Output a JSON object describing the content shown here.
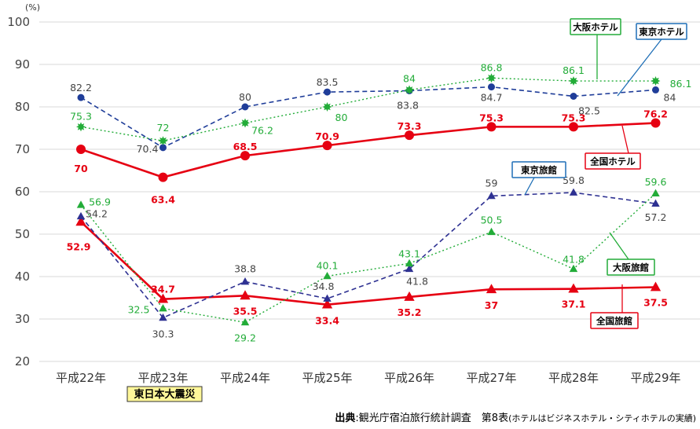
{
  "chart_data": {
    "type": "line",
    "ylabel": "(%)",
    "ylim": [
      20,
      100
    ],
    "yticks": [
      20,
      30,
      40,
      50,
      60,
      70,
      80,
      90,
      100
    ],
    "categories": [
      "平成22年",
      "平成23年",
      "平成24年",
      "平成25年",
      "平成26年",
      "平成27年",
      "平成28年",
      "平成29年"
    ],
    "grid": true,
    "series": [
      {
        "name": "全国ホテル",
        "color": "#e60012",
        "style": "solid",
        "marker": "circle",
        "values": [
          70,
          63.4,
          68.5,
          70.9,
          73.3,
          75.3,
          75.3,
          76.2
        ],
        "labels": [
          "70",
          "63.4",
          "68.5",
          "70.9",
          "73.3",
          "75.3",
          "75.3",
          "76.2"
        ]
      },
      {
        "name": "東京ホテル",
        "color": "#1f3d99",
        "style": "dashed",
        "marker": "circle",
        "values": [
          82.2,
          70.4,
          80,
          83.5,
          83.8,
          84.7,
          82.5,
          84
        ],
        "labels": [
          "82.2",
          "70.4",
          "80",
          "83.5",
          "83.8",
          "84.7",
          "82.5",
          "84"
        ]
      },
      {
        "name": "大阪ホテル",
        "color": "#22ac38",
        "style": "dotted",
        "marker": "star",
        "values": [
          75.3,
          72,
          76.2,
          80,
          84,
          86.8,
          86.1,
          86.1
        ],
        "labels": [
          "75.3",
          "72",
          "76.2",
          "80",
          "84",
          "86.8",
          "86.1",
          "86.1"
        ]
      },
      {
        "name": "全国旅館",
        "color": "#e60012",
        "style": "solid",
        "marker": "triangle",
        "values": [
          52.9,
          34.7,
          35.5,
          33.4,
          35.2,
          37,
          37.1,
          37.5
        ],
        "labels": [
          "52.9",
          "34.7",
          "35.5",
          "33.4",
          "35.2",
          "37",
          "37.1",
          "37.5"
        ]
      },
      {
        "name": "東京旅館",
        "color": "#2e3192",
        "style": "dashed",
        "marker": "triangle",
        "values": [
          54.2,
          30.3,
          38.8,
          34.8,
          41.8,
          59,
          59.8,
          57.2
        ],
        "labels": [
          "54.2",
          "30.3",
          "38.8",
          "34.8",
          "41.8",
          "59",
          "59.8",
          "57.2"
        ]
      },
      {
        "name": "大阪旅館",
        "color": "#22ac38",
        "style": "dotted",
        "marker": "triangle",
        "values": [
          56.9,
          32.5,
          29.2,
          40.1,
          43.1,
          50.5,
          41.8,
          59.6
        ],
        "labels": [
          "56.9",
          "32.5",
          "29.2",
          "40.1",
          "43.1",
          "50.5",
          "41.8",
          "59.6"
        ]
      }
    ],
    "annotations": {
      "earthquake": "東日本大震災",
      "source_bold": "出典",
      "source_text": ":観光庁宿泊旅行統計調査　第8表",
      "source_note": "(ホテルはビジネスホテル・シティホテルの実績)"
    }
  },
  "colors": {
    "red": "#e60012",
    "navy": "#2e3192",
    "blue": "#1f6fb7",
    "green": "#22ac38",
    "grid": "#d9d9d9",
    "earthquake_bg": "#fff799"
  }
}
